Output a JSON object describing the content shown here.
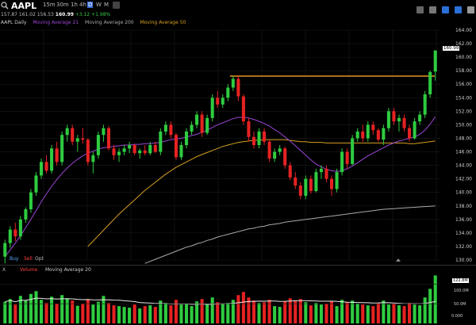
{
  "topbar": {
    "symbol": "AAPL",
    "timeframes": [
      "15m",
      "30m",
      "1h",
      "4h",
      "D",
      "W",
      "M"
    ],
    "active_timeframe": "D",
    "icons": [
      "search-icon",
      "settings-icon",
      "layout-icon",
      "share-icon",
      "chart-type-icon",
      "help-icon"
    ]
  },
  "quote": {
    "open": "157.87",
    "high": "161.02",
    "low": "156.53",
    "close": "160.99",
    "change": "+3.12",
    "change_pct": "+1.98%"
  },
  "legend": {
    "series": "AAPL Daily",
    "ma21": "Moving Average 21",
    "ma200": "Moving Average 200",
    "ma50": "Moving Average 50",
    "colors": {
      "series": "#dddddd",
      "ma21": "#9b45d6",
      "ma200": "#aaaaaa",
      "ma50": "#d6a020"
    }
  },
  "trade_buttons": {
    "buy": "Buy",
    "sell": "Sell",
    "opt": "Opt"
  },
  "volume_panel": {
    "x_label": "X",
    "label": "Volume",
    "ma_label": "Moving Average 20",
    "current": "122.8M",
    "levels": [
      "100.0M",
      "50.0M",
      "0.000"
    ]
  },
  "chart_data": {
    "type": "candlestick",
    "price_axis": {
      "min": 130,
      "max": 164,
      "ticks": [
        "130.00",
        "132.00",
        "134.00",
        "136.00",
        "138.00",
        "140.00",
        "142.00",
        "144.00",
        "146.00",
        "148.00",
        "150.00",
        "152.00",
        "154.00",
        "156.00",
        "158.00",
        "160.00",
        "162.00",
        "164.00"
      ]
    },
    "last_price": "160.99",
    "resistance_level": 157.2,
    "colors": {
      "up": "#2ecc40",
      "down": "#e62222",
      "resistance": "#e8962a",
      "grid": "#1a1a1a"
    },
    "candles": [
      [
        130.5,
        133.0,
        129.5,
        132.5
      ],
      [
        132.5,
        135.0,
        131.8,
        134.5
      ],
      [
        134.5,
        135.5,
        132.8,
        133.5
      ],
      [
        133.5,
        136.5,
        133.0,
        136.0
      ],
      [
        136.0,
        137.8,
        135.5,
        137.5
      ],
      [
        137.5,
        140.5,
        137.0,
        140.0
      ],
      [
        140.0,
        143.0,
        139.5,
        142.5
      ],
      [
        142.5,
        145.0,
        142.0,
        144.5
      ],
      [
        144.5,
        145.5,
        142.8,
        143.2
      ],
      [
        143.2,
        147.0,
        142.8,
        146.5
      ],
      [
        146.5,
        147.5,
        144.0,
        144.5
      ],
      [
        144.5,
        149.0,
        144.0,
        148.5
      ],
      [
        148.5,
        150.0,
        147.5,
        149.5
      ],
      [
        149.5,
        150.0,
        147.0,
        147.5
      ],
      [
        147.5,
        148.5,
        146.0,
        148.0
      ],
      [
        148.0,
        149.5,
        147.2,
        147.8
      ],
      [
        147.8,
        148.0,
        144.0,
        144.5
      ],
      [
        144.5,
        146.0,
        142.8,
        145.5
      ],
      [
        145.5,
        149.0,
        145.0,
        148.5
      ],
      [
        148.5,
        150.0,
        147.5,
        149.5
      ],
      [
        149.5,
        149.8,
        146.2,
        146.5
      ],
      [
        146.5,
        147.0,
        144.8,
        145.5
      ],
      [
        145.5,
        146.5,
        144.5,
        146.0
      ],
      [
        146.0,
        147.0,
        145.5,
        146.5
      ],
      [
        146.5,
        147.5,
        145.8,
        147.0
      ],
      [
        147.0,
        147.2,
        145.5,
        145.8
      ],
      [
        145.8,
        146.5,
        145.0,
        146.2
      ],
      [
        146.2,
        147.0,
        145.5,
        145.8
      ],
      [
        145.8,
        147.5,
        145.5,
        147.0
      ],
      [
        147.0,
        147.5,
        145.8,
        146.0
      ],
      [
        146.0,
        149.5,
        145.5,
        149.0
      ],
      [
        149.0,
        150.5,
        148.5,
        150.0
      ],
      [
        150.0,
        150.5,
        148.0,
        148.5
      ],
      [
        148.5,
        148.8,
        144.8,
        145.2
      ],
      [
        145.2,
        147.5,
        144.8,
        147.0
      ],
      [
        147.0,
        149.5,
        146.5,
        149.0
      ],
      [
        149.0,
        150.5,
        148.5,
        150.0
      ],
      [
        150.0,
        152.0,
        149.5,
        151.5
      ],
      [
        151.5,
        152.0,
        148.2,
        148.8
      ],
      [
        148.8,
        151.5,
        148.5,
        151.0
      ],
      [
        151.0,
        154.5,
        150.5,
        154.0
      ],
      [
        154.0,
        155.0,
        152.5,
        153.0
      ],
      [
        153.0,
        154.5,
        152.5,
        154.0
      ],
      [
        154.0,
        156.0,
        153.5,
        155.5
      ],
      [
        155.5,
        157.2,
        155.0,
        156.8
      ],
      [
        156.8,
        157.2,
        153.5,
        154.2
      ],
      [
        154.2,
        154.5,
        150.0,
        150.5
      ],
      [
        150.5,
        151.0,
        147.5,
        148.2
      ],
      [
        148.2,
        149.0,
        146.5,
        147.0
      ],
      [
        147.0,
        149.5,
        146.5,
        149.0
      ],
      [
        149.0,
        149.5,
        147.0,
        147.5
      ],
      [
        147.5,
        147.8,
        144.5,
        145.0
      ],
      [
        145.0,
        146.5,
        144.5,
        146.0
      ],
      [
        146.0,
        147.0,
        145.5,
        146.5
      ],
      [
        146.5,
        146.8,
        143.5,
        144.0
      ],
      [
        144.0,
        144.5,
        141.8,
        142.2
      ],
      [
        142.2,
        143.0,
        140.5,
        141.0
      ],
      [
        141.0,
        141.5,
        139.0,
        139.5
      ],
      [
        139.5,
        142.5,
        139.0,
        142.0
      ],
      [
        142.0,
        142.5,
        139.8,
        140.2
      ],
      [
        140.2,
        143.5,
        140.0,
        143.0
      ],
      [
        143.0,
        144.0,
        142.0,
        143.5
      ],
      [
        143.5,
        144.0,
        141.5,
        142.0
      ],
      [
        142.0,
        142.5,
        139.5,
        140.5
      ],
      [
        140.5,
        143.5,
        140.0,
        143.0
      ],
      [
        143.0,
        146.5,
        142.5,
        146.0
      ],
      [
        146.0,
        146.5,
        143.5,
        144.2
      ],
      [
        144.2,
        148.5,
        144.0,
        148.0
      ],
      [
        148.0,
        149.5,
        147.5,
        149.0
      ],
      [
        149.0,
        150.0,
        147.5,
        148.0
      ],
      [
        148.0,
        150.5,
        147.5,
        150.0
      ],
      [
        150.0,
        150.5,
        148.5,
        149.2
      ],
      [
        149.2,
        149.5,
        147.5,
        147.8
      ],
      [
        147.8,
        150.0,
        147.0,
        149.5
      ],
      [
        149.5,
        152.5,
        149.0,
        152.0
      ],
      [
        152.0,
        152.5,
        150.0,
        150.5
      ],
      [
        150.5,
        151.5,
        149.0,
        151.0
      ],
      [
        151.0,
        151.5,
        149.0,
        149.5
      ],
      [
        149.5,
        150.0,
        147.5,
        148.0
      ],
      [
        148.0,
        151.0,
        147.8,
        150.5
      ],
      [
        150.5,
        152.0,
        150.0,
        151.5
      ],
      [
        151.5,
        155.0,
        151.0,
        154.5
      ],
      [
        154.5,
        158.0,
        154.0,
        157.8
      ],
      [
        157.87,
        161.02,
        156.53,
        160.99
      ]
    ],
    "volumes": [
      55,
      62,
      48,
      70,
      58,
      75,
      82,
      60,
      52,
      68,
      50,
      72,
      64,
      58,
      45,
      50,
      62,
      48,
      55,
      70,
      52,
      46,
      44,
      42,
      40,
      48,
      38,
      44,
      46,
      42,
      58,
      52,
      46,
      60,
      48,
      50,
      44,
      56,
      62,
      48,
      66,
      54,
      50,
      52,
      60,
      72,
      80,
      66,
      58,
      52,
      54,
      60,
      44,
      42,
      56,
      64,
      58,
      62,
      54,
      46,
      52,
      48,
      50,
      56,
      44,
      60,
      54,
      58,
      50,
      48,
      46,
      44,
      52,
      58,
      48,
      50,
      46,
      44,
      52,
      48,
      46,
      66,
      88,
      122
    ],
    "ma21": [
      130.5,
      131.5,
      132.5,
      133.6,
      134.8,
      136.0,
      137.3,
      138.6,
      139.8,
      140.9,
      141.9,
      142.8,
      143.6,
      144.3,
      144.9,
      145.4,
      145.8,
      146.1,
      146.4,
      146.6,
      146.7,
      146.8,
      146.9,
      147.0,
      147.0,
      147.1,
      147.1,
      147.2,
      147.2,
      147.3,
      147.4,
      147.6,
      147.8,
      147.9,
      148.0,
      148.2,
      148.4,
      148.6,
      148.9,
      149.2,
      149.6,
      150.0,
      150.3,
      150.6,
      150.9,
      151.1,
      151.1,
      151.0,
      150.8,
      150.5,
      150.2,
      149.8,
      149.3,
      148.8,
      148.2,
      147.6,
      146.9,
      146.2,
      145.5,
      144.8,
      144.2,
      143.8,
      143.4,
      143.2,
      143.1,
      143.2,
      143.5,
      143.9,
      144.4,
      144.9,
      145.4,
      145.8,
      146.2,
      146.6,
      147.0,
      147.3,
      147.6,
      147.8,
      148.0,
      148.2,
      148.6,
      149.2,
      150.1,
      151.2
    ],
    "ma50": [
      null,
      null,
      null,
      null,
      null,
      null,
      null,
      null,
      null,
      null,
      null,
      null,
      null,
      null,
      null,
      null,
      132.0,
      132.8,
      133.6,
      134.4,
      135.2,
      136.0,
      136.8,
      137.5,
      138.2,
      138.9,
      139.6,
      140.3,
      140.9,
      141.5,
      142.1,
      142.7,
      143.2,
      143.7,
      144.1,
      144.5,
      144.9,
      145.3,
      145.6,
      145.9,
      146.2,
      146.5,
      146.8,
      147.0,
      147.2,
      147.4,
      147.5,
      147.6,
      147.7,
      147.7,
      147.8,
      147.8,
      147.8,
      147.8,
      147.8,
      147.7,
      147.6,
      147.5,
      147.5,
      147.4,
      147.4,
      147.4,
      147.3,
      147.3,
      147.3,
      147.3,
      147.3,
      147.3,
      147.3,
      147.3,
      147.3,
      147.3,
      147.3,
      147.3,
      147.3,
      147.3,
      147.3,
      147.3,
      147.2,
      147.2,
      147.3,
      147.4,
      147.5,
      147.6
    ],
    "ma200": [
      null,
      null,
      null,
      null,
      null,
      null,
      null,
      null,
      null,
      null,
      null,
      null,
      null,
      null,
      null,
      null,
      null,
      null,
      null,
      null,
      null,
      null,
      null,
      null,
      null,
      null,
      null,
      129.5,
      129.8,
      130.1,
      130.4,
      130.7,
      131.0,
      131.3,
      131.6,
      131.9,
      132.1,
      132.4,
      132.6,
      132.9,
      133.1,
      133.4,
      133.6,
      133.8,
      134.0,
      134.2,
      134.4,
      134.6,
      134.7,
      134.9,
      135.0,
      135.2,
      135.3,
      135.4,
      135.6,
      135.7,
      135.8,
      135.9,
      136.0,
      136.1,
      136.2,
      136.3,
      136.4,
      136.5,
      136.6,
      136.7,
      136.8,
      136.9,
      137.0,
      137.1,
      137.2,
      137.3,
      137.4,
      137.5,
      137.55,
      137.6,
      137.65,
      137.7,
      137.75,
      137.8,
      137.85,
      137.9,
      137.95,
      138.0
    ]
  }
}
